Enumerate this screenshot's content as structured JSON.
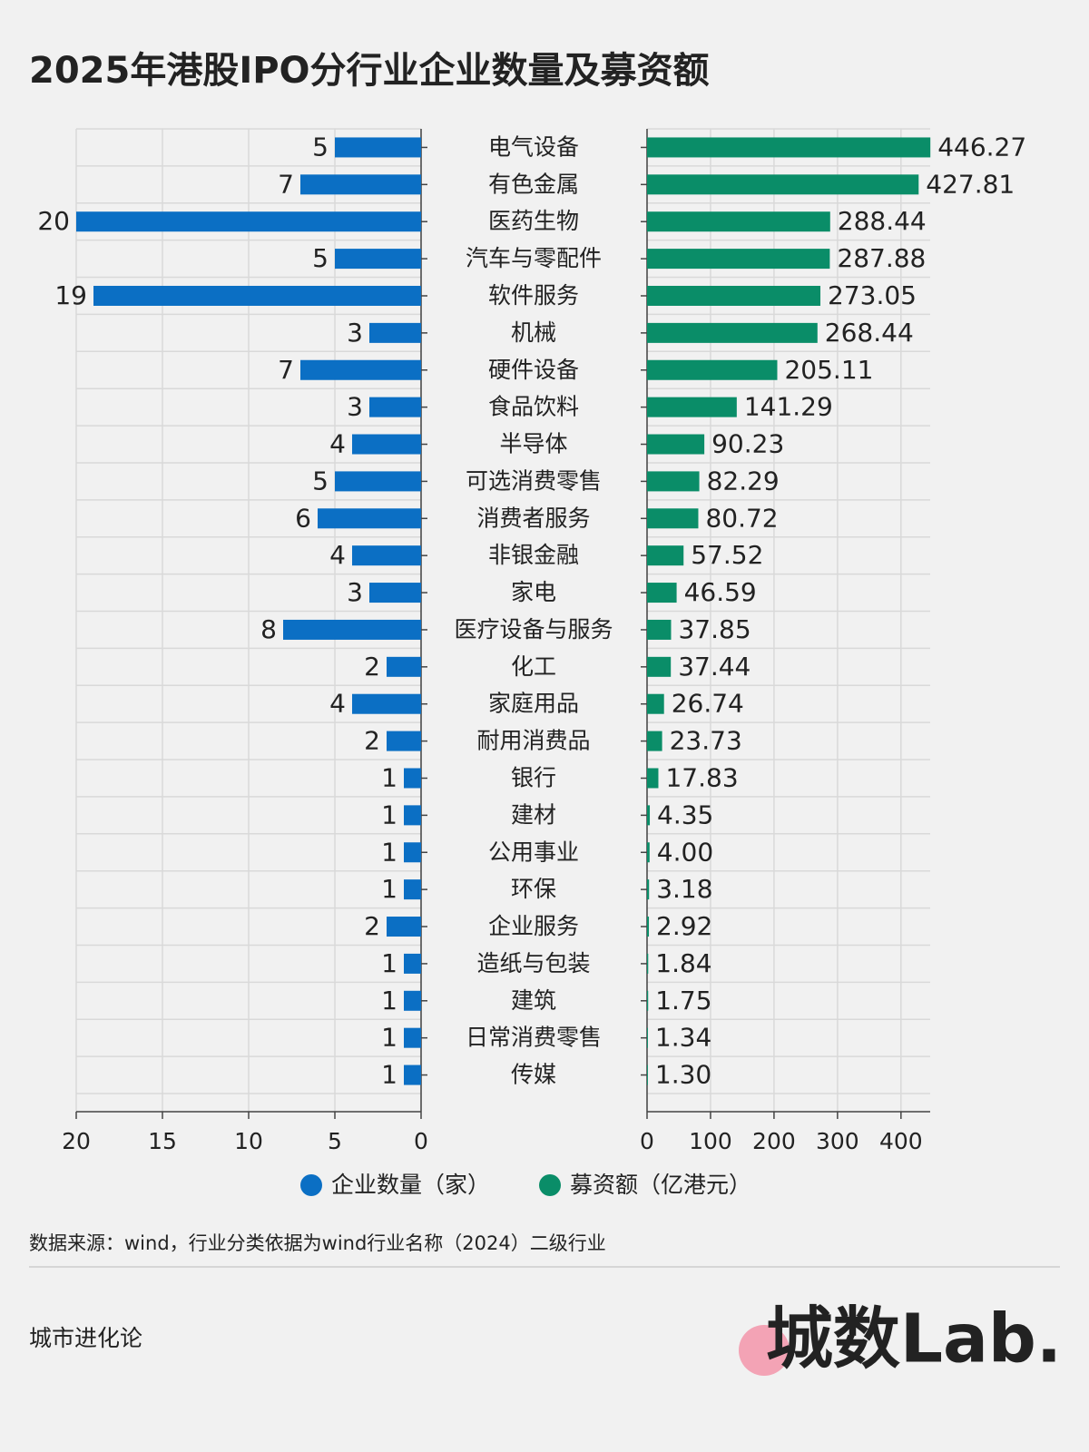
{
  "chart_data": {
    "type": "butterfly",
    "title": "2025年港股IPO分行业企业数量及募资额",
    "categories": [
      "电气设备",
      "有色金属",
      "医药生物",
      "汽车与零配件",
      "软件服务",
      "机械",
      "硬件设备",
      "食品饮料",
      "半导体",
      "可选消费零售",
      "消费者服务",
      "非银金融",
      "家电",
      "医疗设备与服务",
      "化工",
      "家庭用品",
      "耐用消费品",
      "银行",
      "建材",
      "公用事业",
      "环保",
      "企业服务",
      "造纸与包装",
      "建筑",
      "日常消费零售",
      "传媒"
    ],
    "series": [
      {
        "name": "企业数量（家）",
        "color": "#0b6fc4",
        "xlim": [
          0,
          20
        ],
        "xticks": [
          0,
          5,
          10,
          15,
          20
        ],
        "values": [
          5,
          7,
          20,
          5,
          19,
          3,
          7,
          3,
          4,
          5,
          6,
          4,
          3,
          8,
          2,
          4,
          2,
          1,
          1,
          1,
          1,
          2,
          1,
          1,
          1,
          1
        ]
      },
      {
        "name": "募资额（亿港元）",
        "color": "#0a8d68",
        "xlim": [
          0,
          446
        ],
        "xticks": [
          0,
          100,
          200,
          300,
          400
        ],
        "values": [
          446.27,
          427.81,
          288.44,
          287.88,
          273.05,
          268.44,
          205.11,
          141.29,
          90.23,
          82.29,
          80.72,
          57.52,
          46.59,
          37.85,
          37.44,
          26.74,
          23.73,
          17.83,
          4.35,
          4.0,
          3.18,
          2.92,
          1.84,
          1.75,
          1.34,
          1.3
        ],
        "value_labels": [
          "446.27",
          "427.81",
          "288.44",
          "287.88",
          "273.05",
          "268.44",
          "205.11",
          "141.29",
          "90.23",
          "82.29",
          "80.72",
          "57.52",
          "46.59",
          "37.85",
          "37.44",
          "26.74",
          "23.73",
          "17.83",
          "4.35",
          "4.00",
          "3.18",
          "2.92",
          "1.84",
          "1.75",
          "1.34",
          "1.30"
        ]
      }
    ],
    "grid": true,
    "source": "数据来源：wind，行业分类依据为wind行业名称（2024）二级行业",
    "footer": "城市进化论",
    "logo": "城数Lab."
  }
}
